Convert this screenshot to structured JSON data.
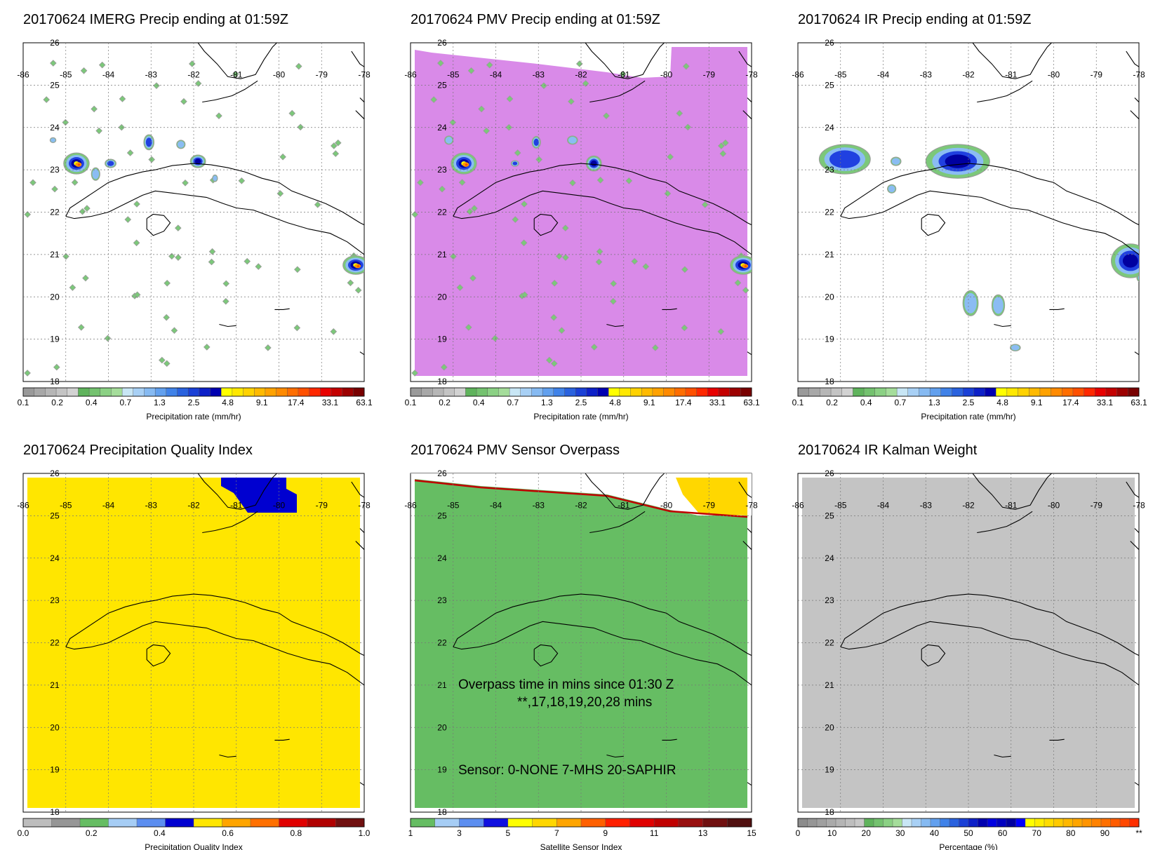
{
  "panels": [
    {
      "title": "20170624 IMERG Precip ending at 01:59Z",
      "field": "precip",
      "bg": "#ffffff",
      "colorbar": "precip"
    },
    {
      "title": "20170624 PMV Precip ending at 01:59Z",
      "field": "pmv",
      "bg": "#d98ae8",
      "colorbar": "precip"
    },
    {
      "title": "20170624 IR Precip ending at 01:59Z",
      "field": "ir",
      "bg": "#ffffff",
      "colorbar": "precip"
    },
    {
      "title": "20170624 Precipitation Quality Index",
      "field": "pqi",
      "bg": "#ffe600",
      "colorbar": "pqi"
    },
    {
      "title": "20170624 PMV Sensor Overpass",
      "field": "sensor",
      "bg": "#66bd63",
      "colorbar": "sensor"
    },
    {
      "title": "20170624 IR Kalman Weight",
      "field": "kalman",
      "bg": "#c4c4c4",
      "colorbar": "pct"
    }
  ],
  "map": {
    "lon_labels": [
      "-86",
      "-85",
      "-84",
      "-83",
      "-82",
      "-81",
      "-80",
      "-79",
      "-78"
    ],
    "lat_labels": [
      "26",
      "25",
      "24",
      "23",
      "22",
      "21",
      "20",
      "19",
      "18"
    ]
  },
  "colorbars": {
    "precip": {
      "label": "Precipitation rate (mm/hr)",
      "ticks": [
        "0.1",
        "0.2",
        "0.4",
        "0.7",
        "1.3",
        "2.5",
        "4.8",
        "9.1",
        "17.4",
        "33.1",
        "63.1"
      ],
      "colors": [
        "#9a9a9a",
        "#a8a8a8",
        "#b6b6b6",
        "#c4c4c4",
        "#d2d2d2",
        "#5fb35c",
        "#74c26f",
        "#8bd184",
        "#a5dd9b",
        "#c8e6f5",
        "#a8d0f5",
        "#86baf2",
        "#62a0ee",
        "#4082e8",
        "#2a62de",
        "#1a40d6",
        "#0d20c8",
        "#0000b0",
        "#ffff00",
        "#ffe800",
        "#ffd200",
        "#ffba00",
        "#ffa200",
        "#ff8a00",
        "#ff6e00",
        "#ff5000",
        "#ff2800",
        "#e80000",
        "#c40000",
        "#9c0000",
        "#780000"
      ]
    },
    "pqi": {
      "label": "Precipitation Quality Index",
      "ticks": [
        "0.0",
        "0.2",
        "0.4",
        "0.6",
        "0.8",
        "1.0"
      ],
      "colors": [
        "#bdbdbd",
        "#969696",
        "#66bd63",
        "#a6cdf5",
        "#5c8ef0",
        "#0000d0",
        "#ffe600",
        "#ffa500",
        "#ff7000",
        "#e00000",
        "#b00000",
        "#701010"
      ]
    },
    "sensor": {
      "label": "Satellite Sensor Index",
      "ticks": [
        "1",
        "3",
        "5",
        "7",
        "9",
        "11",
        "13",
        "15"
      ],
      "colors": [
        "#66bd63",
        "#a6cdf5",
        "#5c8ef0",
        "#1010e0",
        "#ffff00",
        "#ffd700",
        "#ffa500",
        "#ff6000",
        "#ff2000",
        "#e00000",
        "#c00000",
        "#981010",
        "#701010",
        "#501010"
      ]
    },
    "pct": {
      "label": "Percentage (%)",
      "ticks": [
        "0",
        "10",
        "20",
        "30",
        "40",
        "50",
        "60",
        "70",
        "80",
        "90",
        "**"
      ],
      "colors": [
        "#8c8c8c",
        "#969696",
        "#a0a0a0",
        "#aaaaaa",
        "#b4b4b4",
        "#bebebe",
        "#c8c8c8",
        "#5fb35c",
        "#74c26f",
        "#8bd184",
        "#a5dd9b",
        "#c8e6f5",
        "#a8d0f5",
        "#86baf2",
        "#62a0ee",
        "#4082e8",
        "#2a62de",
        "#1a40d6",
        "#0d20c8",
        "#0000b0",
        "#0000e0",
        "#0000c0",
        "#0000a0",
        "#0000ff",
        "#ffff00",
        "#ffee00",
        "#ffdc00",
        "#ffca00",
        "#ffb800",
        "#ffa600",
        "#ff9400",
        "#ff8200",
        "#ff7000",
        "#ff5c00",
        "#ff4800",
        "#ff3000"
      ]
    }
  },
  "annotations": {
    "overpass_line1": "Overpass time in mins since 01:30 Z",
    "overpass_line2": "**,17,18,19,20,28 mins",
    "sensor_line": "Sensor:   0-NONE  7-MHS 20-SAPHIR"
  }
}
